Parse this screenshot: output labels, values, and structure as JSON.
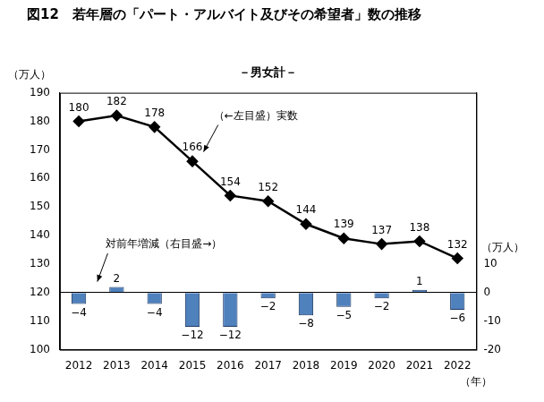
{
  "chart_data": {
    "type": "bar",
    "title": "図12　若年層の「パート・アルバイト及びその希望者」数の推移",
    "subtitle": "－男女計－",
    "y_label": "（万人）",
    "y2_label": "（万人）",
    "x_label": "（年）",
    "annotations": [
      "（←左目盛）実数",
      "対前年増減（右目盛→）"
    ],
    "categories": [
      "2012",
      "2013",
      "2014",
      "2015",
      "2016",
      "2017",
      "2018",
      "2019",
      "2020",
      "2021",
      "2022"
    ],
    "series": [
      {
        "type": "bar",
        "axis": "y2",
        "color": "#4f81bd",
        "values": [
          -4,
          2,
          -4,
          -12,
          -12,
          -2,
          -8,
          -5,
          -2,
          1,
          -6
        ],
        "value_labels": [
          "−4",
          "2",
          "−4",
          "−12",
          "−12",
          "−2",
          "−8",
          "−5",
          "−2",
          "1",
          "−6"
        ]
      },
      {
        "type": "line",
        "color": "#000000",
        "marker": "diamond",
        "line_style": "solid",
        "values": [
          180,
          182,
          178,
          166,
          154,
          152,
          144,
          139,
          137,
          138,
          132
        ]
      }
    ],
    "ylim": [
      100,
      190
    ],
    "yticks": [
      100,
      110,
      120,
      130,
      140,
      150,
      160,
      170,
      180,
      190
    ],
    "y2lim": [
      -20,
      70
    ],
    "y2ticks": [
      -20,
      -10,
      0,
      10
    ],
    "grid": false,
    "data_labels": true
  }
}
